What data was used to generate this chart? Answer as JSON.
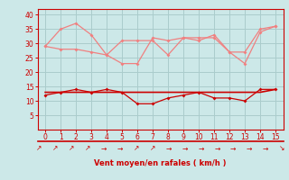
{
  "x": [
    0,
    1,
    2,
    3,
    4,
    5,
    6,
    7,
    8,
    9,
    10,
    11,
    12,
    13,
    14,
    15
  ],
  "rafales": [
    29,
    35,
    37,
    33,
    26,
    23,
    23,
    32,
    31,
    32,
    31,
    33,
    27,
    23,
    34,
    36
  ],
  "moyen_light": [
    29,
    28,
    28,
    27,
    26,
    31,
    31,
    31,
    26,
    32,
    32,
    32,
    27,
    27,
    35,
    36
  ],
  "wind_avg": [
    12,
    13,
    14,
    13,
    14,
    13,
    9,
    9,
    11,
    12,
    13,
    11,
    11,
    10,
    14,
    14
  ],
  "wind_flat": [
    13,
    13,
    13,
    13,
    13,
    13,
    13,
    13,
    13,
    13,
    13,
    13,
    13,
    13,
    13,
    14
  ],
  "bg_color": "#cce8e8",
  "grid_color": "#aacccc",
  "line_rafales_color": "#f08080",
  "line_moyen_light_color": "#f08080",
  "line_avg_color": "#cc0000",
  "line_flat_color": "#cc0000",
  "xlabel": "Vent moyen/en rafales ( km/h )",
  "xlabel_color": "#cc0000",
  "tick_color": "#cc0000",
  "spine_color": "#cc0000",
  "ylim": [
    0,
    42
  ],
  "yticks": [
    5,
    10,
    15,
    20,
    25,
    30,
    35,
    40
  ],
  "xticks": [
    0,
    1,
    2,
    3,
    4,
    5,
    6,
    7,
    8,
    9,
    10,
    11,
    12,
    13,
    14,
    15
  ],
  "arrows": [
    "↗",
    "↗",
    "↗",
    "↗",
    "→",
    "→",
    "↗",
    "↗",
    "→",
    "→",
    "→",
    "→",
    "→",
    "→",
    "→",
    "↘"
  ]
}
